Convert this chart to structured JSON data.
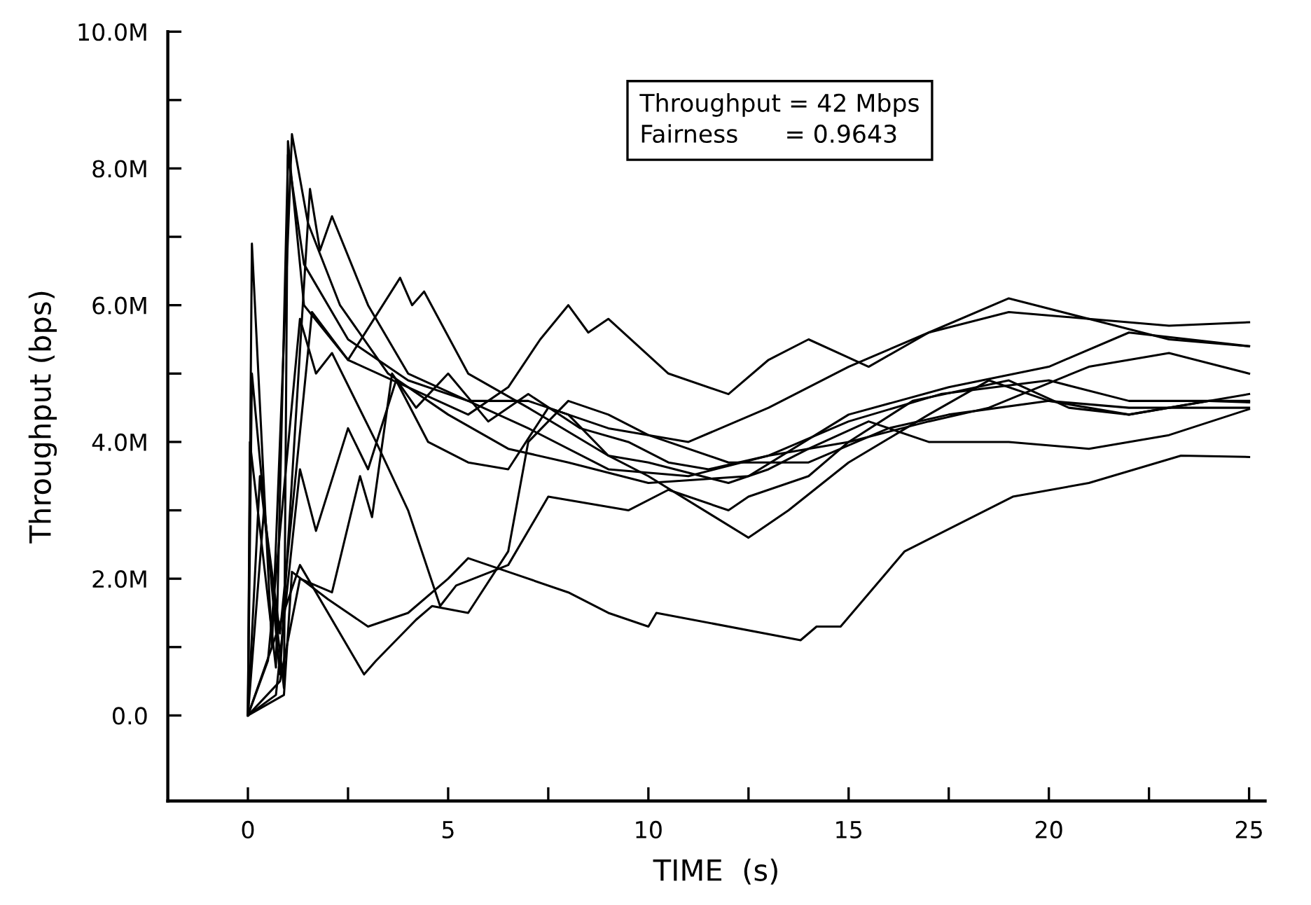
{
  "chart_data": {
    "type": "line",
    "xlabel": "TIME  (s)",
    "ylabel": "Throughput (bps)",
    "annotations": [
      "Throughput = 42 Mbps\nFairness      = 0.9643"
    ],
    "xlim": [
      -2.0,
      25.4
    ],
    "ylim": [
      -1.25,
      10.0
    ],
    "xticks": [
      0,
      {
        "value": 2.5,
        "label": null
      },
      5,
      {
        "value": 7.5,
        "label": null
      },
      10,
      {
        "value": 12.5,
        "label": null
      },
      15,
      {
        "value": 17.5,
        "label": null
      },
      20,
      {
        "value": 22.5,
        "label": null
      },
      25
    ],
    "yticks": [
      {
        "value": 0,
        "label": "0.0"
      },
      {
        "value": 1,
        "label": null
      },
      {
        "value": 2,
        "label": "2.0M"
      },
      {
        "value": 3,
        "label": null
      },
      {
        "value": 4,
        "label": "4.0M"
      },
      {
        "value": 5,
        "label": null
      },
      {
        "value": 6,
        "label": "6.0M"
      },
      {
        "value": 7,
        "label": null
      },
      {
        "value": 8,
        "label": "8.0M"
      },
      {
        "value": 9,
        "label": null
      },
      {
        "value": 10,
        "label": "10.0M"
      }
    ],
    "grid": false,
    "legend": false,
    "marker": "none",
    "line_style": "solid",
    "series": [
      {
        "color": "#000000",
        "x": [
          0,
          0.1,
          0.6,
          1.1,
          1.5,
          2.3,
          3.5,
          5,
          6.5,
          8,
          10,
          12.5,
          15,
          17.5,
          20,
          22,
          25
        ],
        "values": [
          0,
          6.9,
          1.0,
          8.5,
          7.2,
          6.0,
          5.0,
          4.4,
          3.9,
          3.7,
          3.4,
          3.5,
          4.4,
          4.8,
          5.1,
          5.6,
          5.4
        ]
      },
      {
        "color": "#000000",
        "x": [
          0,
          0.05,
          0.7,
          1.0,
          1.4,
          2.5,
          4,
          5.5,
          7,
          9,
          11,
          13,
          15,
          17.3,
          20,
          22,
          25
        ],
        "values": [
          0,
          4.0,
          0.7,
          8.2,
          6.6,
          5.5,
          4.9,
          4.6,
          4.2,
          3.6,
          3.5,
          3.8,
          4.3,
          4.7,
          4.9,
          4.6,
          4.6
        ]
      },
      {
        "color": "#000000",
        "x": [
          0,
          0.1,
          0.8,
          1.55,
          1.8,
          2.1,
          3,
          4,
          5.5,
          7,
          9,
          11,
          13,
          15,
          17,
          19,
          21,
          23,
          25
        ],
        "values": [
          0,
          5.0,
          0.6,
          7.7,
          6.8,
          7.3,
          6.0,
          5.0,
          4.6,
          4.6,
          4.2,
          4.0,
          4.5,
          5.1,
          5.6,
          6.1,
          5.8,
          5.5,
          5.4
        ]
      },
      {
        "color": "#000000",
        "x": [
          0,
          0.3,
          0.9,
          1.0,
          1.4,
          2.5,
          4,
          5.5,
          6.5,
          7.3,
          8,
          8.5,
          9,
          10.5,
          12,
          13,
          14,
          15.5,
          17,
          19,
          21,
          23,
          25
        ],
        "values": [
          0,
          3.5,
          0.4,
          8.4,
          6.0,
          5.2,
          4.8,
          4.4,
          4.8,
          5.5,
          6.0,
          5.6,
          5.8,
          5.0,
          4.7,
          5.2,
          5.5,
          5.1,
          5.6,
          5.9,
          5.8,
          5.7,
          5.75
        ]
      },
      {
        "color": "#000000",
        "x": [
          0,
          0.4,
          0.8,
          1.6,
          2.5,
          3.8,
          4.1,
          4.4,
          5.5,
          7,
          9,
          10,
          12.5,
          13.5,
          15,
          17,
          18.5,
          20,
          22,
          25
        ],
        "values": [
          0,
          3.0,
          1.2,
          5.9,
          5.2,
          6.4,
          6.0,
          6.2,
          5.0,
          4.5,
          3.8,
          3.5,
          2.6,
          3.0,
          3.7,
          4.4,
          4.9,
          4.6,
          4.4,
          4.7
        ]
      },
      {
        "color": "#000000",
        "x": [
          0,
          0.9,
          1.1,
          2,
          3,
          4,
          5,
          5.5,
          6.5,
          8,
          9,
          10,
          10.2,
          13.8,
          14.2,
          14.8,
          16.4,
          19.1,
          21,
          23.3,
          25
        ],
        "values": [
          0,
          0.3,
          2.1,
          1.7,
          1.3,
          1.5,
          2.0,
          2.3,
          2.1,
          1.8,
          1.5,
          1.3,
          1.5,
          1.1,
          1.3,
          1.3,
          2.4,
          3.2,
          3.4,
          3.8,
          3.78
        ]
      },
      {
        "color": "#000000",
        "x": [
          0,
          0.6,
          1.3,
          2.9,
          3.2,
          4.2,
          4.6,
          5.5,
          6.5,
          7,
          8,
          9,
          10,
          12,
          14,
          16,
          17.5,
          20,
          22,
          25
        ],
        "values": [
          0,
          1.0,
          2.2,
          0.6,
          0.8,
          1.4,
          1.6,
          1.5,
          2.4,
          4.0,
          4.6,
          4.4,
          4.1,
          3.7,
          3.7,
          4.2,
          4.4,
          4.6,
          4.5,
          4.5
        ]
      },
      {
        "color": "#000000",
        "x": [
          0,
          0.5,
          1.3,
          1.7,
          2.1,
          3.2,
          4,
          4.8,
          5.2,
          6.5,
          7.5,
          9.5,
          10.5,
          12,
          12.5,
          14,
          15,
          17,
          18.5,
          21,
          23,
          25
        ],
        "values": [
          0,
          0.8,
          5.8,
          5.0,
          5.3,
          4.0,
          3.0,
          1.6,
          1.9,
          2.2,
          3.2,
          3.0,
          3.3,
          3.0,
          3.2,
          3.5,
          4.0,
          4.3,
          4.5,
          5.1,
          5.3,
          5.0
        ]
      },
      {
        "color": "#000000",
        "x": [
          0,
          0.7,
          1.3,
          1.7,
          2.5,
          3,
          3.7,
          4.5,
          5.5,
          6.5,
          7.5,
          8,
          9,
          10,
          12,
          13,
          14,
          15.5,
          17,
          19,
          21,
          23,
          25
        ],
        "values": [
          0,
          0.3,
          3.6,
          2.7,
          4.2,
          3.6,
          4.9,
          4.0,
          3.7,
          3.6,
          4.5,
          4.4,
          3.8,
          3.7,
          3.4,
          3.6,
          3.9,
          4.3,
          4.0,
          4.0,
          3.9,
          4.1,
          4.48
        ]
      },
      {
        "color": "#000000",
        "x": [
          0,
          0.8,
          1.3,
          2.1,
          2.8,
          3.1,
          3.6,
          4.2,
          5,
          6,
          7,
          8.3,
          9.5,
          10.5,
          11.5,
          13,
          15,
          16.6,
          19,
          20.5,
          22,
          24,
          25
        ],
        "values": [
          0,
          0.5,
          2.0,
          1.8,
          3.5,
          2.9,
          5.0,
          4.5,
          5.0,
          4.3,
          4.7,
          4.2,
          4.0,
          3.7,
          3.6,
          3.8,
          4.0,
          4.6,
          4.9,
          4.5,
          4.4,
          4.6,
          4.58
        ]
      }
    ]
  }
}
